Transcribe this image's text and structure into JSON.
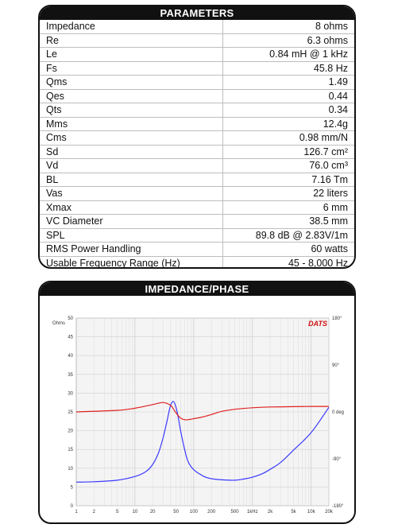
{
  "parameters": {
    "title": "PARAMETERS",
    "rows": [
      {
        "name": "Impedance",
        "value": "8 ohms"
      },
      {
        "name": "Re",
        "value": "6.3 ohms"
      },
      {
        "name": "Le",
        "value": "0.84 mH @ 1 kHz"
      },
      {
        "name": "Fs",
        "value": "45.8 Hz"
      },
      {
        "name": "Qms",
        "value": "1.49"
      },
      {
        "name": "Qes",
        "value": "0.44"
      },
      {
        "name": "Qts",
        "value": "0.34"
      },
      {
        "name": "Mms",
        "value": "12.4g"
      },
      {
        "name": "Cms",
        "value": "0.98 mm/N"
      },
      {
        "name": "Sd",
        "value": "126.7 cm²"
      },
      {
        "name": "Vd",
        "value": "76.0 cm³"
      },
      {
        "name": "BL",
        "value": "7.16 Tm"
      },
      {
        "name": "Vas",
        "value": "22 liters"
      },
      {
        "name": "Xmax",
        "value": "6 mm"
      },
      {
        "name": "VC Diameter",
        "value": "38.5 mm"
      },
      {
        "name": "SPL",
        "value": "89.8 dB @ 2.83V/1m"
      },
      {
        "name": "RMS Power Handling",
        "value": "60 watts"
      },
      {
        "name": "Usable Frequency Range (Hz)",
        "value": "45 - 8,000 Hz"
      }
    ]
  },
  "impedance": {
    "title": "IMPEDANCE/PHASE",
    "brand": "DATS",
    "left_unit": "Ohms",
    "colors": {
      "impedance": "#3a3aff",
      "phase": "#e02020",
      "grid": "#cfcfcf",
      "brand": "#d01010"
    }
  },
  "chart_data": {
    "type": "line",
    "x_scale": "log",
    "xlim": [
      1,
      20000
    ],
    "x_ticks": [
      "1",
      "2",
      "5",
      "10",
      "20",
      "50",
      "100",
      "200",
      "500",
      "1kHz",
      "2k",
      "5k",
      "10k",
      "20k"
    ],
    "ylim_left": [
      0,
      50
    ],
    "y_ticks_left": [
      "0",
      "5",
      "10",
      "15",
      "20",
      "25",
      "30",
      "35",
      "40",
      "45",
      "50"
    ],
    "ylim_right_deg": [
      -180,
      180
    ],
    "y_ticks_right": [
      "180°",
      "90°",
      "0 deg",
      "-90°",
      "-180°"
    ],
    "grid": true,
    "series": [
      {
        "axis": "left",
        "x": [
          1,
          2,
          5,
          10,
          15,
          20,
          25,
          30,
          35,
          40,
          45,
          50,
          55,
          60,
          70,
          80,
          100,
          150,
          200,
          300,
          500,
          700,
          1000,
          1500,
          2000,
          3000,
          5000,
          10000,
          20000
        ],
        "values": [
          6.3,
          6.4,
          6.8,
          7.8,
          9,
          11,
          14,
          18,
          22.5,
          26.5,
          27.8,
          26.2,
          23.2,
          19.8,
          15,
          11.8,
          9.6,
          7.8,
          7.2,
          6.9,
          6.8,
          7.1,
          7.6,
          8.6,
          9.7,
          11.5,
          14.8,
          19.5,
          26.2
        ]
      },
      {
        "axis": "right",
        "x": [
          1,
          5,
          10,
          20,
          30,
          40,
          45,
          50,
          60,
          70,
          80,
          100,
          150,
          200,
          300,
          500,
          1000,
          2000,
          5000,
          10000,
          20000
        ],
        "values": [
          0,
          3,
          7,
          14,
          18,
          13,
          6,
          -2,
          -12,
          -15,
          -15,
          -13,
          -9,
          -5,
          1,
          5,
          8,
          9.5,
          10,
          10.5,
          10.5
        ]
      }
    ]
  }
}
